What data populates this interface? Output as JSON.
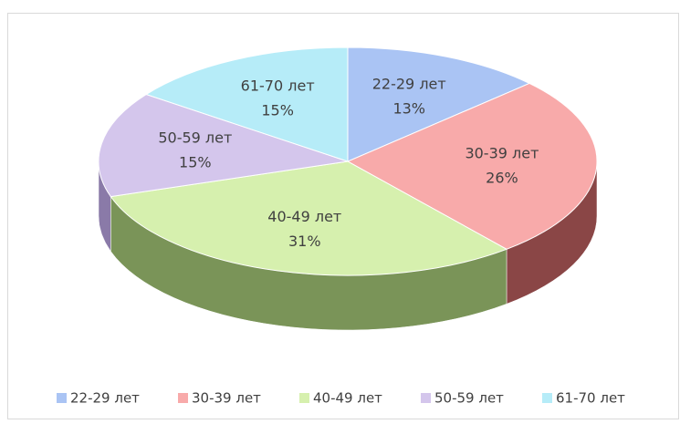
{
  "chart_data": {
    "type": "pie3d",
    "categories": [
      "22-29 лет",
      "30-39 лет",
      "40-49 лет",
      "50-59 лет",
      "61-70 лет"
    ],
    "values": [
      13,
      26,
      31,
      15,
      15
    ],
    "value_labels": [
      "13%",
      "26%",
      "31%",
      "15%",
      "15%"
    ],
    "colors": [
      "#aac4f4",
      "#f8aaaa",
      "#d6f0ae",
      "#d4c6ec",
      "#b6ecf8"
    ],
    "side_colors": [
      "#6f86b8",
      "#8a4646",
      "#7a9458",
      "#8a7aa8",
      "#6aa4b4"
    ],
    "legend": "bottom"
  }
}
